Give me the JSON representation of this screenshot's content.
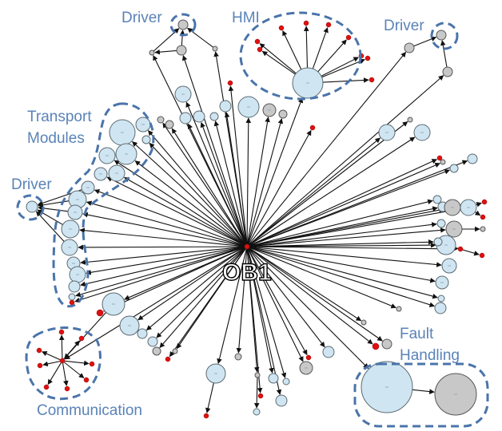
{
  "center": {
    "label": "OB1"
  },
  "groups": {
    "driver_top": "Driver",
    "hmi": "HMI",
    "driver_right": "Driver",
    "transport": [
      "Transport",
      "Modules"
    ],
    "driver_left": "Driver",
    "communication": "Communication",
    "fault": [
      "Fault",
      "Handling"
    ]
  },
  "colors": {
    "node_light": "#cfe6f2",
    "node_gray": "#c8c8c8",
    "node_red": "#e01010",
    "group_outline": "#4a74aa",
    "label_text": "#5a83b8",
    "edge": "#111111"
  }
}
